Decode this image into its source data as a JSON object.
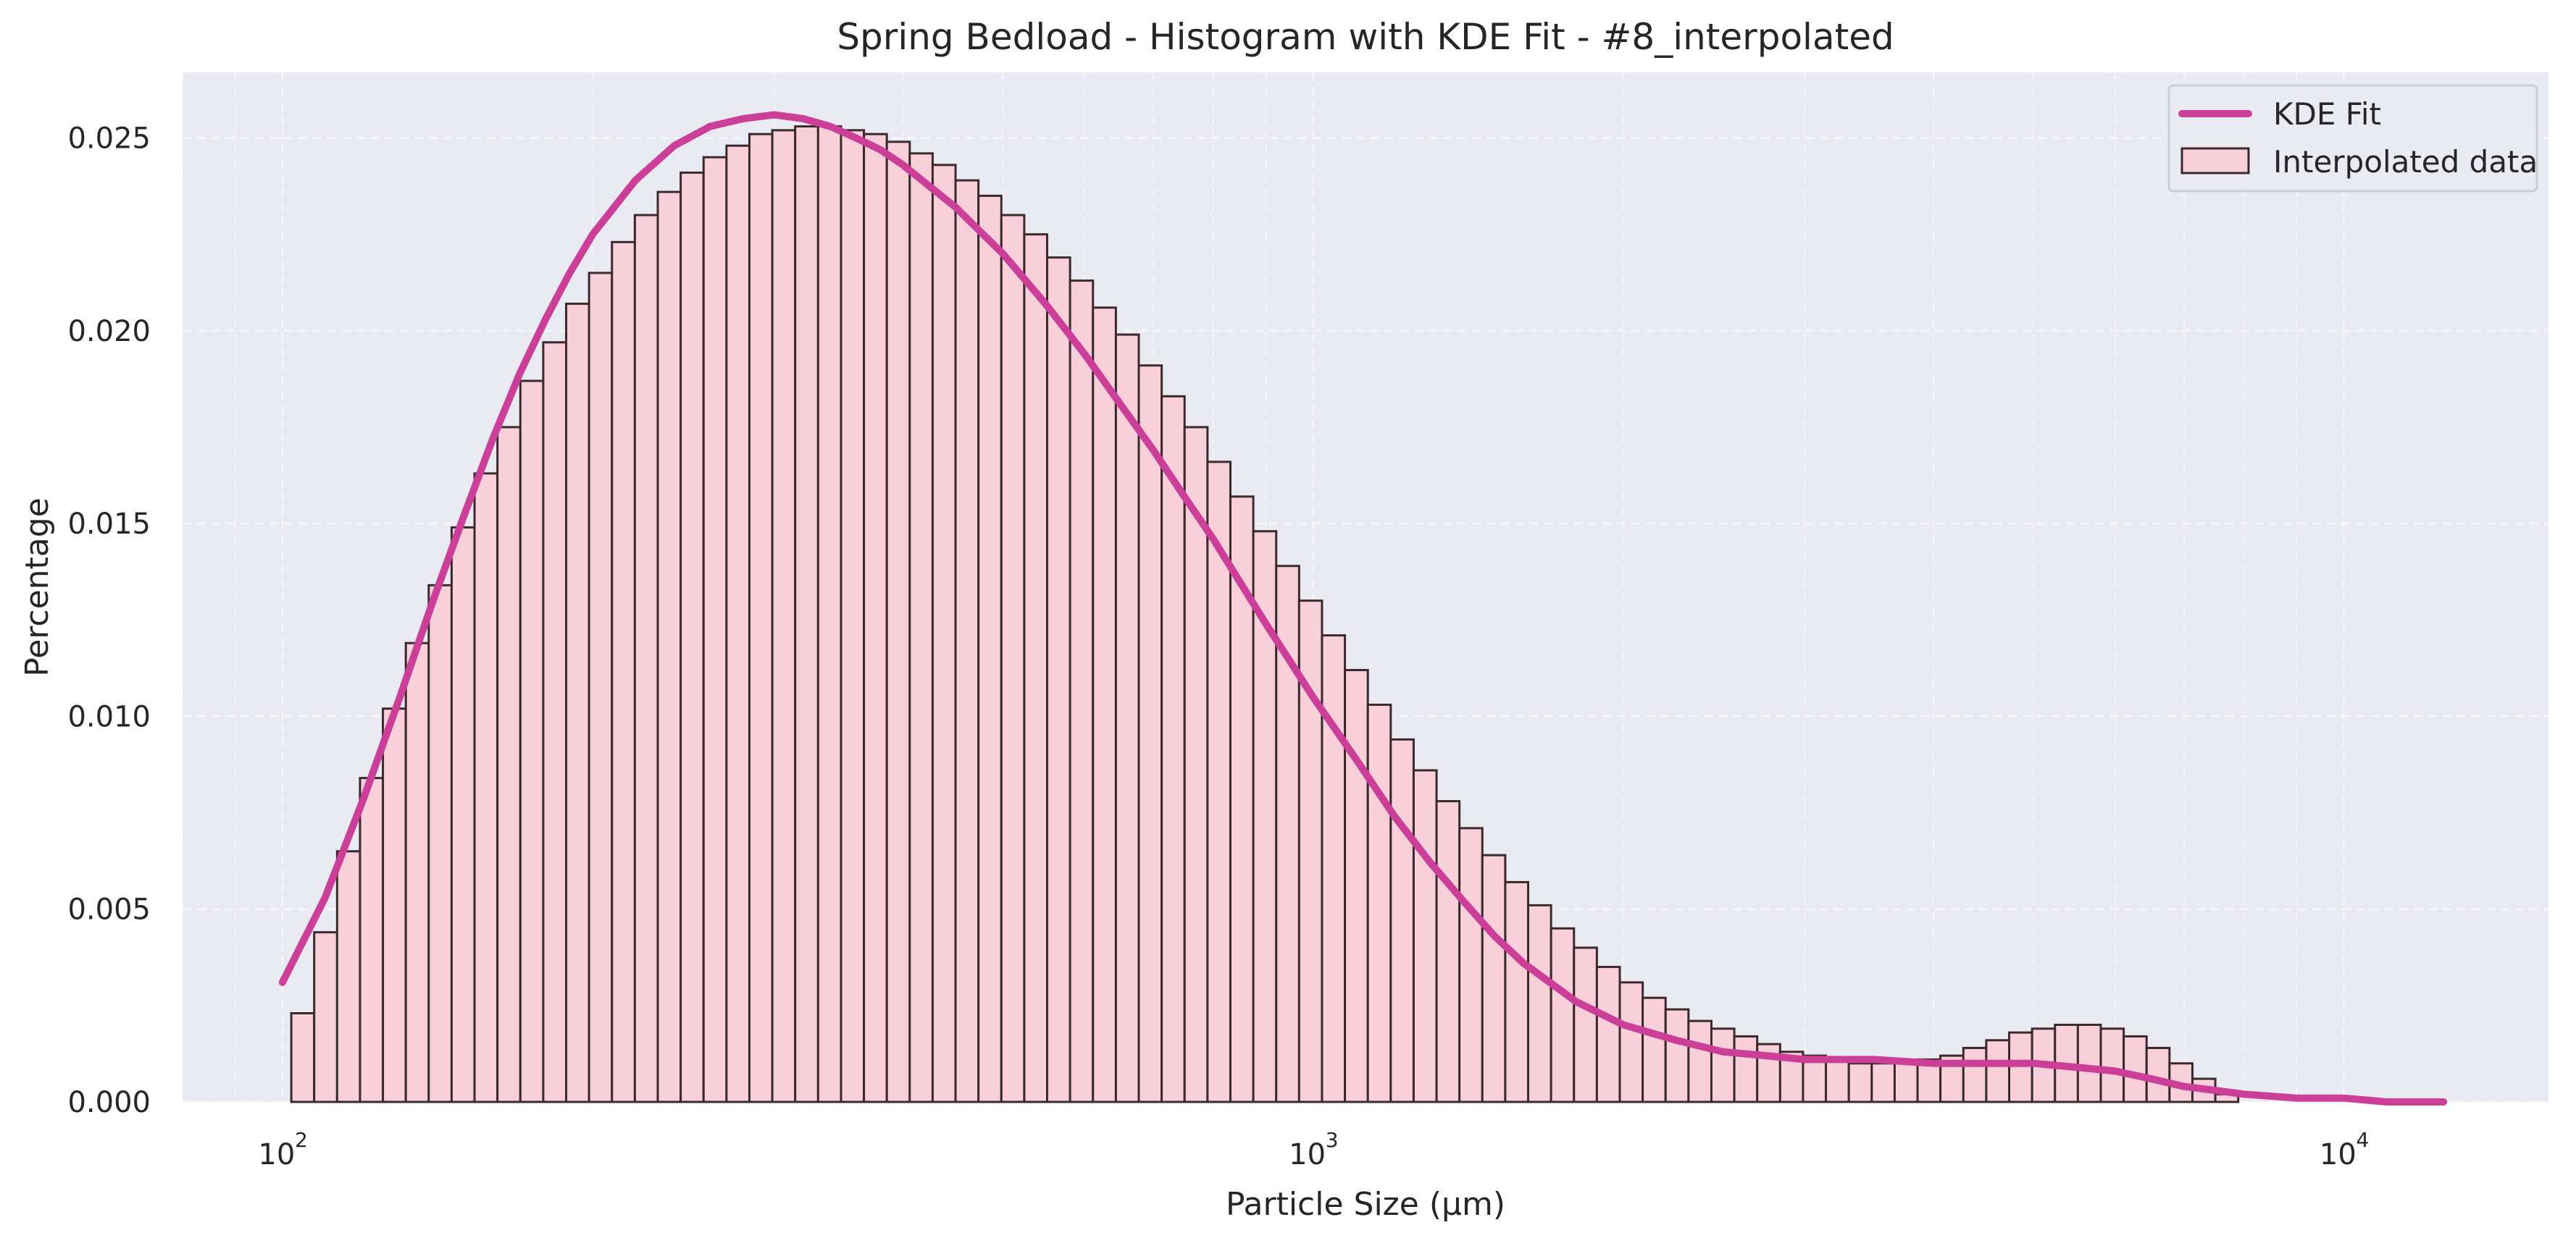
{
  "chart_data": {
    "type": "bar",
    "title": "Spring Bedload - Histogram with KDE Fit - #8_interpolated",
    "xlabel": "Particle Size (μm)",
    "ylabel": "Percentage",
    "x_scale": "log",
    "xlim": [
      80,
      15800
    ],
    "ylim": [
      0,
      0.0267
    ],
    "x_ticks": [
      {
        "value": 100,
        "base": "10",
        "exp": "2"
      },
      {
        "value": 1000,
        "base": "10",
        "exp": "3"
      },
      {
        "value": 10000,
        "base": "10",
        "exp": "4"
      }
    ],
    "y_ticks": [
      {
        "value": 0,
        "label": "0.000"
      },
      {
        "value": 0.005,
        "label": "0.005"
      },
      {
        "value": 0.01,
        "label": "0.010"
      },
      {
        "value": 0.015,
        "label": "0.015"
      },
      {
        "value": 0.02,
        "label": "0.020"
      },
      {
        "value": 0.025,
        "label": "0.025"
      }
    ],
    "grid": true,
    "legend_position": "top-right",
    "colors": {
      "background": "#EAEAF2",
      "bar_fill": "#F9D0D9",
      "bar_edge": "#3A2A2E",
      "kde_line": "#CC3F99",
      "grid": "#F7F7FB"
    },
    "histogram": {
      "name": "Interpolated data",
      "bin_start": 102,
      "bin_end": 7900,
      "values": [
        0.0023,
        0.0044,
        0.0065,
        0.0084,
        0.0102,
        0.0119,
        0.0134,
        0.0149,
        0.0163,
        0.0175,
        0.0187,
        0.0197,
        0.0207,
        0.0215,
        0.0223,
        0.023,
        0.0236,
        0.0241,
        0.0245,
        0.0248,
        0.0251,
        0.0252,
        0.0253,
        0.0253,
        0.0252,
        0.0251,
        0.0249,
        0.0246,
        0.0243,
        0.0239,
        0.0235,
        0.023,
        0.0225,
        0.0219,
        0.0213,
        0.0206,
        0.0199,
        0.0191,
        0.0183,
        0.0175,
        0.0166,
        0.0157,
        0.0148,
        0.0139,
        0.013,
        0.0121,
        0.0112,
        0.0103,
        0.0094,
        0.0086,
        0.0078,
        0.0071,
        0.0064,
        0.0057,
        0.0051,
        0.0045,
        0.004,
        0.0035,
        0.0031,
        0.0027,
        0.0024,
        0.0021,
        0.0019,
        0.0017,
        0.0015,
        0.0013,
        0.0012,
        0.0011,
        0.001,
        0.001,
        0.001,
        0.0011,
        0.0012,
        0.0014,
        0.0016,
        0.0018,
        0.0019,
        0.002,
        0.002,
        0.0019,
        0.0017,
        0.0014,
        0.001,
        0.0006,
        0.0002
      ]
    },
    "kde": {
      "name": "KDE Fit",
      "x": [
        100,
        110,
        120,
        130,
        140,
        150,
        160,
        170,
        180,
        190,
        200,
        220,
        240,
        260,
        280,
        300,
        320,
        340,
        360,
        380,
        400,
        450,
        500,
        550,
        600,
        650,
        700,
        750,
        800,
        900,
        1000,
        1100,
        1200,
        1300,
        1400,
        1500,
        1600,
        1800,
        2000,
        2250,
        2500,
        2750,
        3000,
        3500,
        4000,
        4500,
        5000,
        5500,
        6000,
        6500,
        7000,
        7500,
        8000,
        9000,
        10000,
        11000,
        12500
      ],
      "y": [
        0.0031,
        0.0053,
        0.0079,
        0.0105,
        0.013,
        0.0152,
        0.0172,
        0.0189,
        0.0203,
        0.0215,
        0.0225,
        0.0239,
        0.0248,
        0.0253,
        0.0255,
        0.0256,
        0.0255,
        0.0253,
        0.025,
        0.0247,
        0.0243,
        0.0232,
        0.022,
        0.0207,
        0.0194,
        0.0181,
        0.0169,
        0.0157,
        0.0146,
        0.0124,
        0.0105,
        0.0089,
        0.0074,
        0.0062,
        0.0052,
        0.0043,
        0.0036,
        0.0026,
        0.002,
        0.0016,
        0.0013,
        0.0012,
        0.0011,
        0.0011,
        0.001,
        0.001,
        0.001,
        0.0009,
        0.0008,
        0.0006,
        0.0004,
        0.0003,
        0.0002,
        0.0001,
        0.0001,
        0.0,
        0.0
      ]
    },
    "legend": [
      {
        "label": "KDE Fit",
        "kind": "line"
      },
      {
        "label": "Interpolated data",
        "kind": "patch"
      }
    ]
  }
}
